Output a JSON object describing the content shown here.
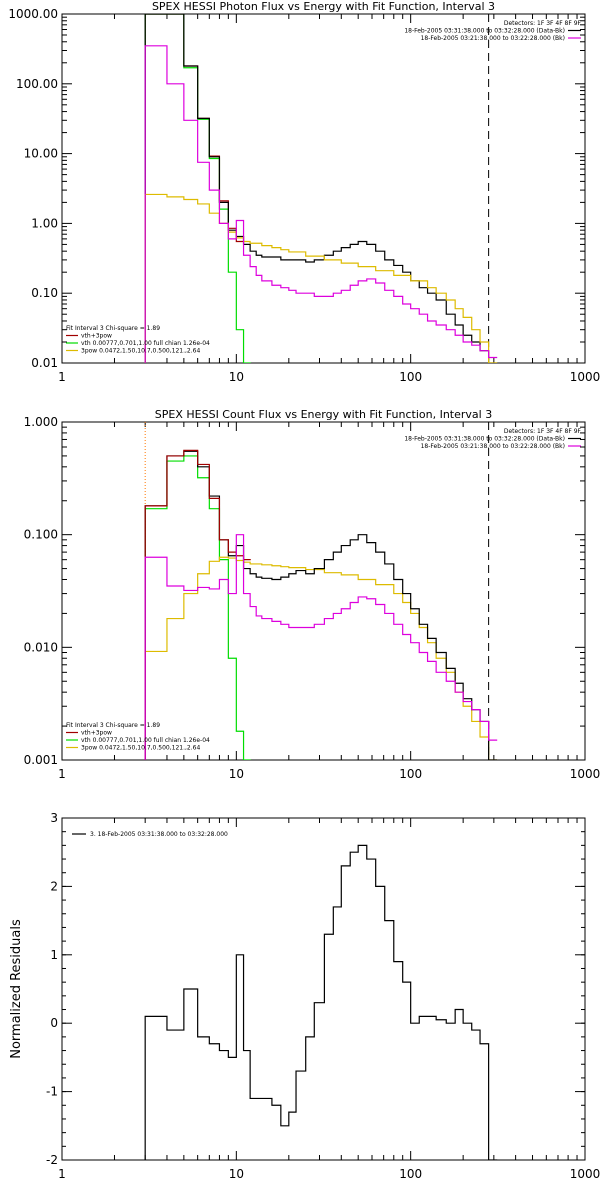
{
  "colors": {
    "data": "#000000",
    "total": "#a00000",
    "vth": "#00dd00",
    "pow": "#ddbb00",
    "bk": "#dd00dd",
    "marker": "#000000",
    "marker_low": "#ff7700"
  },
  "chart_data": [
    {
      "type": "line",
      "step": true,
      "title": "SPEX HESSI Photon Flux vs Energy with Fit Function, Interval 3",
      "xlabel": "",
      "ylabel": "",
      "xscale": "log",
      "yscale": "log",
      "xlim": [
        1,
        1000
      ],
      "ylim": [
        0.01,
        1000
      ],
      "xticks": [
        {
          "v": 1,
          "label": "1"
        },
        {
          "v": 10,
          "label": "10"
        },
        {
          "v": 100,
          "label": "100"
        },
        {
          "v": 1000,
          "label": "1000"
        }
      ],
      "yticks": [
        {
          "v": 0.01,
          "label": "0.01"
        },
        {
          "v": 0.1,
          "label": "0.10"
        },
        {
          "v": 1,
          "label": "1.00"
        },
        {
          "v": 10,
          "label": "10.00"
        },
        {
          "v": 100,
          "label": "100.00"
        },
        {
          "v": 1000,
          "label": "1000.00"
        }
      ],
      "legend_top": [
        "Detectors: 1F 3F 4F 8F 9F",
        "18-Feb-2005 03:31:38.000 to 03:32:28.000 (Data-Bk)",
        "18-Feb-2005 03:21:38.000 to 03:22:28.000 (Bk)"
      ],
      "legend_top_series": [
        "",
        "data",
        "bk"
      ],
      "legend_bottom_title": "Fit Interval 3   Chi-square = 1.89",
      "legend_bottom": [
        {
          "label": "vth+3pow",
          "series": "total"
        },
        {
          "label": "vth 0.00777,0.701,1.00  full chian 1.26e-04",
          "series": "vth"
        },
        {
          "label": "3pow 0.0472,1.50,10.7,0.500,121.,2.64",
          "series": "pow"
        }
      ],
      "vlines": [
        {
          "x": 3,
          "style": "dotted",
          "color": "marker_low"
        },
        {
          "x": 280,
          "style": "dashed",
          "color": "marker"
        }
      ],
      "series": [
        {
          "name": "vth+3pow",
          "key": "total",
          "x": [
            3,
            4,
            5,
            6,
            7,
            8,
            9,
            10
          ],
          "y": [
            1000,
            1000,
            180,
            32,
            9.2,
            2.1,
            0.85,
            0.55
          ]
        },
        {
          "name": "vth",
          "key": "vth",
          "x": [
            3,
            4,
            5,
            6,
            7,
            8,
            9,
            10,
            11
          ],
          "y": [
            1000,
            1000,
            170,
            31,
            8.5,
            1.6,
            0.2,
            0.03,
            0.01
          ]
        },
        {
          "name": "Data-Bk",
          "key": "data",
          "x": [
            3,
            4,
            5,
            6,
            7,
            8,
            9,
            10,
            11,
            12,
            13,
            14,
            16,
            18,
            20,
            22,
            25,
            28,
            32,
            36,
            40,
            45,
            50,
            56,
            63,
            71,
            80,
            90,
            100,
            112,
            125,
            140,
            160,
            180,
            200,
            224,
            250,
            280
          ],
          "y": [
            1000,
            1000,
            180,
            32,
            9,
            2,
            0.8,
            0.65,
            0.5,
            0.4,
            0.35,
            0.33,
            0.33,
            0.3,
            0.3,
            0.3,
            0.28,
            0.3,
            0.35,
            0.4,
            0.45,
            0.5,
            0.55,
            0.5,
            0.4,
            0.3,
            0.25,
            0.2,
            0.15,
            0.12,
            0.1,
            0.08,
            0.05,
            0.035,
            0.025,
            0.02,
            0.015,
            0.01
          ]
        },
        {
          "name": "3pow",
          "key": "pow",
          "x": [
            3,
            4,
            5,
            6,
            7,
            8,
            9,
            10,
            11,
            12,
            14,
            16,
            18,
            20,
            25,
            32,
            40,
            50,
            63,
            80,
            100,
            125,
            140,
            160,
            180,
            200,
            224,
            250,
            280
          ],
          "y": [
            2.6,
            2.4,
            2.2,
            1.9,
            1.4,
            1.0,
            0.75,
            0.62,
            0.55,
            0.52,
            0.48,
            0.45,
            0.42,
            0.39,
            0.34,
            0.3,
            0.27,
            0.24,
            0.21,
            0.18,
            0.15,
            0.12,
            0.1,
            0.08,
            0.06,
            0.045,
            0.03,
            0.02,
            0.01
          ]
        },
        {
          "name": "Bk",
          "key": "bk",
          "x": [
            3,
            4,
            5,
            6,
            7,
            8,
            9,
            10,
            11,
            12,
            13,
            14,
            16,
            18,
            20,
            22,
            25,
            28,
            32,
            36,
            40,
            45,
            50,
            56,
            63,
            71,
            80,
            90,
            100,
            112,
            125,
            140,
            160,
            180,
            200,
            224,
            250,
            280
          ],
          "y": [
            350,
            100,
            30,
            7.5,
            3,
            1,
            0.6,
            1.1,
            0.35,
            0.24,
            0.18,
            0.15,
            0.13,
            0.12,
            0.11,
            0.1,
            0.1,
            0.09,
            0.09,
            0.1,
            0.11,
            0.13,
            0.15,
            0.16,
            0.14,
            0.11,
            0.09,
            0.07,
            0.06,
            0.05,
            0.04,
            0.035,
            0.03,
            0.025,
            0.02,
            0.018,
            0.015,
            0.012
          ]
        }
      ]
    },
    {
      "type": "line",
      "step": true,
      "title": "SPEX HESSI Count Flux vs Energy with Fit Function, Interval 3",
      "xlabel": "",
      "ylabel": "",
      "xscale": "log",
      "yscale": "log",
      "xlim": [
        1,
        1000
      ],
      "ylim": [
        0.001,
        1
      ],
      "xticks": [
        {
          "v": 1,
          "label": "1"
        },
        {
          "v": 10,
          "label": "10"
        },
        {
          "v": 100,
          "label": "100"
        },
        {
          "v": 1000,
          "label": "1000"
        }
      ],
      "yticks": [
        {
          "v": 0.001,
          "label": "0.001"
        },
        {
          "v": 0.01,
          "label": "0.010"
        },
        {
          "v": 0.1,
          "label": "0.100"
        },
        {
          "v": 1,
          "label": "1.000"
        }
      ],
      "legend_top": [
        "Detectors: 1F 3F 4F 8F 9F",
        "18-Feb-2005 03:31:38.000 to 03:32:28.000 (Data-Bk)",
        "18-Feb-2005 03:21:38.000 to 03:22:28.000 (Bk)"
      ],
      "legend_top_series": [
        "",
        "data",
        "bk"
      ],
      "legend_bottom_title": "Fit Interval 3   Chi-square = 1.89",
      "legend_bottom": [
        {
          "label": "vth+3pow",
          "series": "total"
        },
        {
          "label": "vth 0.00777,0.701,1.00  full chian 1.26e-04",
          "series": "vth"
        },
        {
          "label": "3pow 0.0472,1.50,10.7,0.500,121.,2.64",
          "series": "pow"
        }
      ],
      "vlines": [
        {
          "x": 3,
          "style": "dotted",
          "color": "marker_low"
        },
        {
          "x": 280,
          "style": "dashed",
          "color": "marker"
        }
      ],
      "series": [
        {
          "name": "vth",
          "key": "vth",
          "x": [
            3,
            4,
            5,
            6,
            7,
            8,
            9,
            10,
            11
          ],
          "y": [
            0.17,
            0.45,
            0.5,
            0.32,
            0.17,
            0.06,
            0.008,
            0.0018,
            0.001
          ]
        },
        {
          "name": "3pow",
          "key": "pow",
          "x": [
            3,
            4,
            5,
            6,
            7,
            8,
            9,
            10,
            11,
            12,
            14,
            16,
            18,
            20,
            25,
            32,
            40,
            50,
            63,
            80,
            90,
            100,
            112,
            125,
            140,
            160,
            180,
            200,
            224,
            250,
            280
          ],
          "y": [
            0.0092,
            0.018,
            0.03,
            0.045,
            0.058,
            0.063,
            0.062,
            0.059,
            0.057,
            0.055,
            0.054,
            0.053,
            0.052,
            0.051,
            0.049,
            0.046,
            0.044,
            0.04,
            0.036,
            0.03,
            0.025,
            0.02,
            0.015,
            0.011,
            0.008,
            0.006,
            0.004,
            0.003,
            0.0022,
            0.0016,
            0.001
          ]
        },
        {
          "name": "Data-Bk",
          "key": "data",
          "x": [
            3,
            4,
            5,
            6,
            7,
            8,
            9,
            10,
            11,
            12,
            13,
            14,
            16,
            18,
            20,
            22,
            25,
            28,
            32,
            36,
            40,
            45,
            50,
            56,
            63,
            71,
            80,
            90,
            100,
            112,
            125,
            140,
            160,
            180,
            200,
            224,
            250,
            280
          ],
          "y": [
            0.18,
            0.5,
            0.55,
            0.4,
            0.22,
            0.09,
            0.065,
            0.08,
            0.05,
            0.045,
            0.042,
            0.041,
            0.04,
            0.042,
            0.045,
            0.048,
            0.045,
            0.05,
            0.06,
            0.07,
            0.08,
            0.09,
            0.1,
            0.085,
            0.07,
            0.055,
            0.04,
            0.03,
            0.022,
            0.016,
            0.012,
            0.009,
            0.0065,
            0.0048,
            0.0035,
            0.0028,
            0.0022,
            0.001
          ]
        },
        {
          "name": "vth+3pow",
          "key": "total",
          "x": [
            3,
            4,
            5,
            6,
            7,
            8,
            9,
            10,
            11
          ],
          "y": [
            0.18,
            0.5,
            0.56,
            0.42,
            0.21,
            0.09,
            0.07,
            0.065,
            0.06
          ]
        },
        {
          "name": "Bk",
          "key": "bk",
          "x": [
            3,
            4,
            5,
            6,
            7,
            8,
            9,
            10,
            11,
            12,
            13,
            14,
            16,
            18,
            20,
            22,
            25,
            28,
            32,
            36,
            40,
            45,
            50,
            56,
            63,
            71,
            80,
            90,
            100,
            112,
            125,
            140,
            160,
            180,
            200,
            224,
            250,
            280
          ],
          "y": [
            0.063,
            0.035,
            0.032,
            0.034,
            0.033,
            0.04,
            0.03,
            0.1,
            0.03,
            0.023,
            0.019,
            0.018,
            0.017,
            0.016,
            0.015,
            0.015,
            0.015,
            0.016,
            0.018,
            0.02,
            0.022,
            0.025,
            0.028,
            0.027,
            0.024,
            0.02,
            0.016,
            0.013,
            0.011,
            0.009,
            0.0075,
            0.006,
            0.005,
            0.004,
            0.0033,
            0.0028,
            0.0022,
            0.0015
          ]
        }
      ]
    },
    {
      "type": "line",
      "step": true,
      "title": "",
      "xlabel": "",
      "ylabel": "Normalized Residuals",
      "xscale": "log",
      "yscale": "linear",
      "xlim": [
        1,
        1000
      ],
      "ylim": [
        -2,
        3
      ],
      "xticks": [
        {
          "v": 1,
          "label": "1"
        },
        {
          "v": 10,
          "label": "10"
        },
        {
          "v": 100,
          "label": "100"
        },
        {
          "v": 1000,
          "label": "1000"
        }
      ],
      "yticks": [
        {
          "v": -2,
          "label": "-2"
        },
        {
          "v": -1,
          "label": "-1"
        },
        {
          "v": 0,
          "label": "0"
        },
        {
          "v": 1,
          "label": "1"
        },
        {
          "v": 2,
          "label": "2"
        },
        {
          "v": 3,
          "label": "3"
        }
      ],
      "legend_top_left": "3. 18-Feb-2005 03:31:38.000 to 03:32:28.000",
      "series": [
        {
          "name": "3. 18-Feb-2005 03:31:38.000 to 03:32:28.000",
          "key": "data",
          "x": [
            3,
            4,
            5,
            6,
            7,
            8,
            9,
            10,
            11,
            12,
            13,
            14,
            16,
            18,
            20,
            22,
            25,
            28,
            32,
            36,
            40,
            45,
            50,
            56,
            63,
            71,
            80,
            90,
            100,
            112,
            125,
            140,
            160,
            180,
            200,
            224,
            250,
            280
          ],
          "y": [
            0.1,
            -0.1,
            0.5,
            -0.2,
            -0.3,
            -0.4,
            -0.5,
            1.0,
            -0.4,
            -1.1,
            -1.1,
            -1.1,
            -1.2,
            -1.5,
            -1.3,
            -0.7,
            -0.2,
            0.3,
            1.3,
            1.7,
            2.3,
            2.5,
            2.6,
            2.4,
            2.0,
            1.5,
            0.9,
            0.6,
            0.0,
            0.1,
            0.1,
            0.05,
            0.0,
            0.2,
            0.0,
            -0.1,
            -0.3,
            -2.0
          ]
        }
      ]
    }
  ]
}
